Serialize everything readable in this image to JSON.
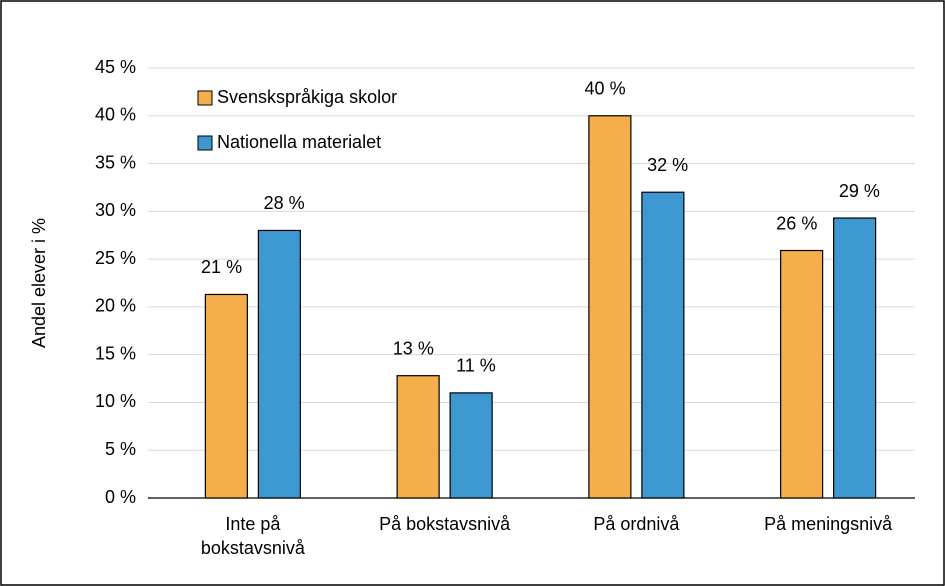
{
  "chart_data": {
    "type": "bar",
    "y_label": "Andel elever i %",
    "categories": [
      "Inte på\nbokstavsnivå",
      "På bokstavsnivå",
      "På ordnivå",
      "På meningsnivå"
    ],
    "series": [
      {
        "name": "Svenskspråkiga skolor",
        "color": "#f5ae4c",
        "values": [
          21.3,
          12.8,
          40,
          25.9
        ],
        "value_labels": [
          "21 %",
          "13 %",
          "40 %",
          "26 %"
        ]
      },
      {
        "name": "Nationella materialet",
        "color": "#3d98d1",
        "values": [
          28,
          11,
          32,
          29.3
        ],
        "value_labels": [
          "28 %",
          "11 %",
          "32 %",
          "29 %"
        ]
      }
    ],
    "ylim": [
      0,
      45
    ],
    "yticks": [
      {
        "value": 0,
        "label": "0 %"
      },
      {
        "value": 5,
        "label": "5 %"
      },
      {
        "value": 10,
        "label": "10 %"
      },
      {
        "value": 15,
        "label": "15 %"
      },
      {
        "value": 20,
        "label": "20 %"
      },
      {
        "value": 25,
        "label": "25 %"
      },
      {
        "value": 30,
        "label": "30 %"
      },
      {
        "value": 35,
        "label": "35 %"
      },
      {
        "value": 40,
        "label": "40 %"
      },
      {
        "value": 45,
        "label": "45 %"
      }
    ],
    "grid": true,
    "legend": "upper left"
  }
}
